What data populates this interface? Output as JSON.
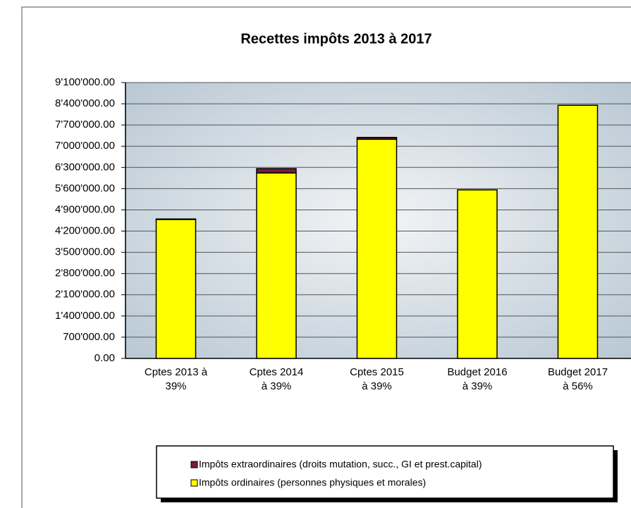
{
  "chart_data": {
    "type": "stacked-bar",
    "title": "Recettes impôts 2013 à 2017",
    "categories": [
      [
        "Cptes 2013 à",
        "39%"
      ],
      [
        "Cptes 2014",
        "à 39%"
      ],
      [
        "Cptes 2015",
        "à 39%"
      ],
      [
        "Budget 2016",
        "à 39%"
      ],
      [
        "Budget 2017",
        "à 56%"
      ]
    ],
    "series": [
      {
        "name": "Impôts ordinaires (personnes physiques et morales)",
        "color": "#ffff00",
        "values": [
          4580000,
          6120000,
          7230000,
          5560000,
          8350000
        ]
      },
      {
        "name": "Impôts extraordinaires (droits mutation, succ., GI et prest.capital)",
        "color": "#7a1c3c",
        "values": [
          20000,
          140000,
          60000,
          0,
          0
        ]
      }
    ],
    "ylim": [
      0,
      9100000
    ],
    "yticks": [
      {
        "value": 0,
        "label": "0.00"
      },
      {
        "value": 700000,
        "label": "700'000.00"
      },
      {
        "value": 1400000,
        "label": "1'400'000.00"
      },
      {
        "value": 2100000,
        "label": "2'100'000.00"
      },
      {
        "value": 2800000,
        "label": "2'800'000.00"
      },
      {
        "value": 3500000,
        "label": "3'500'000.00"
      },
      {
        "value": 4200000,
        "label": "4'200'000.00"
      },
      {
        "value": 4900000,
        "label": "4'900'000.00"
      },
      {
        "value": 5600000,
        "label": "5'600'000.00"
      },
      {
        "value": 6300000,
        "label": "6'300'000.00"
      },
      {
        "value": 7000000,
        "label": "7'000'000.00"
      },
      {
        "value": 7700000,
        "label": "7'700'000.00"
      },
      {
        "value": 8400000,
        "label": "8'400'000.00"
      },
      {
        "value": 9100000,
        "label": "9'100'000.00"
      }
    ],
    "grid": true
  }
}
